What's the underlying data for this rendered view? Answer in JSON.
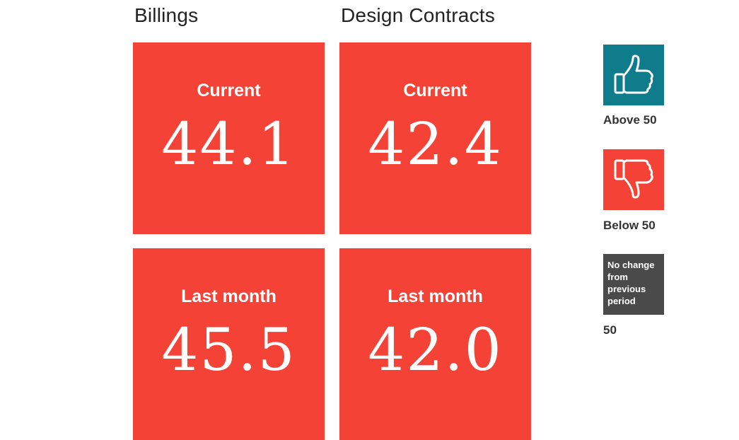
{
  "columns": [
    {
      "title": "Billings",
      "tiles": [
        {
          "label": "Current",
          "value": "44.1"
        },
        {
          "label": "Last month",
          "value": "45.5"
        }
      ]
    },
    {
      "title": "Design Contracts",
      "tiles": [
        {
          "label": "Current",
          "value": "42.4"
        },
        {
          "label": "Last month",
          "value": "42.0"
        }
      ]
    }
  ],
  "legend": {
    "above": {
      "label": "Above 50",
      "icon": "thumbs-up-icon",
      "color": "#0f7c8c"
    },
    "below": {
      "label": "Below 50",
      "icon": "thumbs-down-icon",
      "color": "#f44336"
    },
    "nochange": {
      "box_text": "No change from previous period",
      "label": "50",
      "color": "#4a4a4a"
    }
  },
  "colors": {
    "tile": "#f44336",
    "text_dark": "#222222"
  }
}
